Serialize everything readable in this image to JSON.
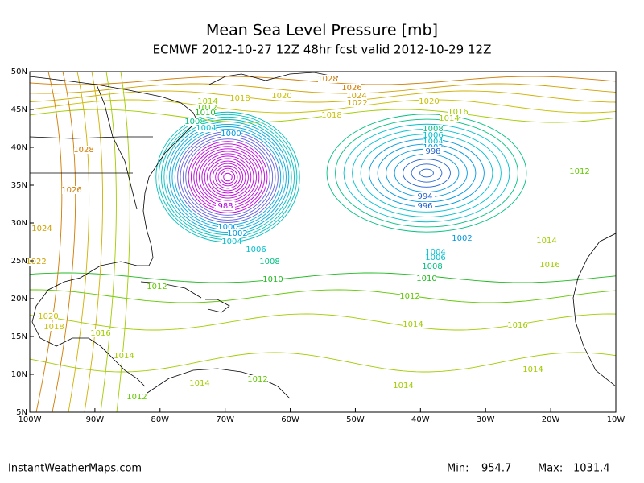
{
  "header": {
    "title": "Mean Sea Level Pressure [mb]",
    "subtitle": "ECMWF 2012-10-27 12Z 48hr fcst valid 2012-10-29 12Z"
  },
  "map": {
    "lat_labels": [
      "50N",
      "45N",
      "40N",
      "35N",
      "30N",
      "25N",
      "20N",
      "15N",
      "10N",
      "5N"
    ],
    "lon_labels": [
      "100W",
      "90W",
      "80W",
      "70W",
      "60W",
      "50W",
      "40W",
      "30W",
      "20W",
      "10W"
    ],
    "contour_labels": [
      "1028",
      "1026",
      "1024",
      "1022",
      "1020",
      "1020",
      "1018",
      "1018",
      "1016",
      "1014",
      "1014",
      "1012",
      "1010",
      "1008",
      "1004",
      "1000",
      "1008",
      "1006",
      "1004",
      "1002",
      "998",
      "994",
      "996",
      "988",
      "1000",
      "1002",
      "1004",
      "1006",
      "1008",
      "1010",
      "1012",
      "1014",
      "1002",
      "1004",
      "1006",
      "1008",
      "1010",
      "1012",
      "1014",
      "1016",
      "1016",
      "1014",
      "1014",
      "1012",
      "1012",
      "1014",
      "1016",
      "1012",
      "1028",
      "1026",
      "1024",
      "1022",
      "1020",
      "1018",
      "1014"
    ]
  },
  "footer": {
    "source": "InstantWeatherMaps.com",
    "min_label": "Min:",
    "min_value": "954.7",
    "max_label": "Max:",
    "max_value": "1031.4"
  }
}
